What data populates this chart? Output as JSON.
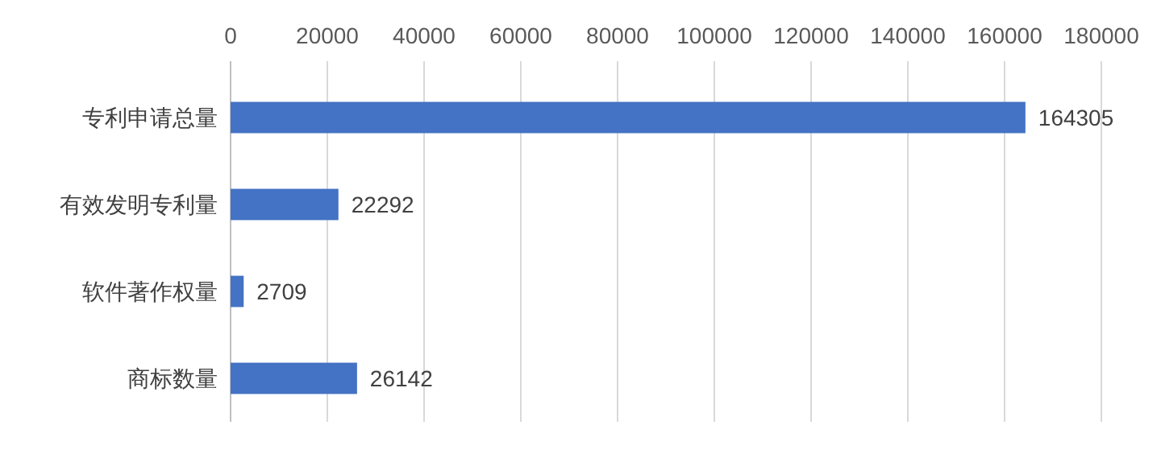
{
  "chart_data": {
    "type": "bar",
    "orientation": "horizontal",
    "categories": [
      "专利申请总量",
      "有效发明专利量",
      "软件著作权量",
      "商标数量"
    ],
    "values": [
      164305,
      22292,
      2709,
      26142
    ],
    "color": "#4472c4",
    "xlim": [
      0,
      180000
    ],
    "xticks": [
      0,
      20000,
      40000,
      60000,
      80000,
      100000,
      120000,
      140000,
      160000,
      180000
    ],
    "grid": "x",
    "data_labels": true
  }
}
